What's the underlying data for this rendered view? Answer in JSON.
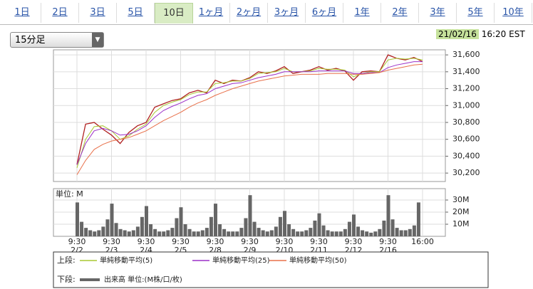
{
  "tabs": [
    {
      "label": "1日"
    },
    {
      "label": "2日"
    },
    {
      "label": "3日"
    },
    {
      "label": "5日"
    },
    {
      "label": "10日",
      "selected": true
    },
    {
      "label": "1ヶ月"
    },
    {
      "label": "2ヶ月"
    },
    {
      "label": "3ヶ月"
    },
    {
      "label": "6ヶ月"
    },
    {
      "label": "1年"
    },
    {
      "label": "2年"
    },
    {
      "label": "3年"
    },
    {
      "label": "5年"
    },
    {
      "label": "10年"
    }
  ],
  "interval": "15分足",
  "timestamp": {
    "date": "21/02/16",
    "time": "16:20 EST"
  },
  "legend_rows": [
    "上段:",
    "下段:"
  ],
  "chart_data": [
    {
      "type": "line",
      "xlim": [
        -0.68,
        10.66
      ],
      "ylim": [
        30100,
        31660
      ],
      "yticks": [
        {
          "value": 30200,
          "label": "30,200"
        },
        {
          "value": 30400,
          "label": "30,400"
        },
        {
          "value": 30600,
          "label": "30,600"
        },
        {
          "value": 30800,
          "label": "30,800"
        },
        {
          "value": 31000,
          "label": "31,000"
        },
        {
          "value": 31200,
          "label": "31,200"
        },
        {
          "value": 31400,
          "label": "31,400"
        },
        {
          "value": 31600,
          "label": "31,600"
        }
      ],
      "grid": true,
      "x": [
        0,
        0.25,
        0.5,
        0.75,
        1,
        1.25,
        1.5,
        1.75,
        2,
        2.25,
        2.5,
        2.75,
        3,
        3.25,
        3.5,
        3.75,
        4,
        4.25,
        4.5,
        4.75,
        5,
        5.25,
        5.5,
        5.75,
        6,
        6.25,
        6.5,
        6.75,
        7,
        7.25,
        7.5,
        7.75,
        8,
        8.25,
        8.5,
        8.75,
        9,
        9.25,
        9.5,
        9.75,
        10
      ],
      "series": [
        {
          "color": "#b02020",
          "width": 1.3,
          "values": [
            30300,
            30780,
            30800,
            30720,
            30650,
            30550,
            30680,
            30760,
            30800,
            30980,
            31020,
            31060,
            31080,
            31150,
            31180,
            31150,
            31300,
            31260,
            31300,
            31290,
            31330,
            31400,
            31380,
            31410,
            31460,
            31380,
            31400,
            31420,
            31460,
            31420,
            31440,
            31410,
            31300,
            31400,
            31410,
            31400,
            31600,
            31560,
            31540,
            31570,
            31520
          ]
        },
        {
          "name": "単純移動平均(5)",
          "color": "#a8c832",
          "width": 1,
          "values": [
            30260,
            30600,
            30750,
            30760,
            30700,
            30600,
            30640,
            30720,
            30780,
            30920,
            31000,
            31040,
            31070,
            31130,
            31160,
            31160,
            31260,
            31270,
            31290,
            31290,
            31320,
            31380,
            31390,
            31400,
            31440,
            31400,
            31400,
            31410,
            31440,
            31430,
            31430,
            31420,
            31340,
            31380,
            31400,
            31400,
            31540,
            31560,
            31550,
            31560,
            31540
          ]
        },
        {
          "name": "単純移動平均(25)",
          "color": "#9b30c8",
          "width": 1,
          "values": [
            30300,
            30550,
            30700,
            30730,
            30700,
            30650,
            30660,
            30700,
            30760,
            30860,
            30940,
            30990,
            31030,
            31080,
            31120,
            31140,
            31200,
            31230,
            31260,
            31270,
            31300,
            31330,
            31350,
            31370,
            31400,
            31400,
            31400,
            31400,
            31410,
            31410,
            31410,
            31410,
            31380,
            31380,
            31390,
            31390,
            31450,
            31480,
            31500,
            31520,
            31520
          ]
        },
        {
          "name": "単純移動平均(50)",
          "color": "#e8704a",
          "width": 1,
          "values": [
            30180,
            30350,
            30480,
            30540,
            30580,
            30600,
            30620,
            30660,
            30700,
            30760,
            30820,
            30870,
            30920,
            30980,
            31030,
            31070,
            31120,
            31160,
            31200,
            31230,
            31260,
            31290,
            31310,
            31330,
            31350,
            31360,
            31370,
            31370,
            31370,
            31380,
            31380,
            31380,
            31370,
            31370,
            31380,
            31390,
            31420,
            31440,
            31460,
            31480,
            31490
          ]
        }
      ]
    },
    {
      "type": "bar",
      "unit_label": "単位: M",
      "xlim": [
        -0.68,
        10.66
      ],
      "ylim": [
        0,
        39.4
      ],
      "yticks": [
        {
          "value": 10,
          "label": "10M"
        },
        {
          "value": 20,
          "label": "20M"
        },
        {
          "value": 30,
          "label": "30M"
        }
      ],
      "xticks": [
        {
          "value": 0,
          "label": "9:30",
          "date": "2/2"
        },
        {
          "value": 1,
          "label": "9:30",
          "date": "2/3"
        },
        {
          "value": 2,
          "label": "9:30",
          "date": "2/4"
        },
        {
          "value": 3,
          "label": "9:30",
          "date": "2/5"
        },
        {
          "value": 4,
          "label": "9:30",
          "date": "2/8"
        },
        {
          "value": 5,
          "label": "9:30",
          "date": "2/9"
        },
        {
          "value": 6,
          "label": "9:30",
          "date": "2/10"
        },
        {
          "value": 7,
          "label": "9:30",
          "date": "2/11"
        },
        {
          "value": 8,
          "label": "9:30",
          "date": "2/12"
        },
        {
          "value": 9,
          "label": "9:30",
          "date": "2/16"
        },
        {
          "value": 10,
          "label": "16:00"
        }
      ],
      "x": [
        0,
        0.125,
        0.25,
        0.375,
        0.5,
        0.625,
        0.75,
        0.875,
        1,
        1.125,
        1.25,
        1.375,
        1.5,
        1.625,
        1.75,
        1.875,
        2,
        2.125,
        2.25,
        2.375,
        2.5,
        2.625,
        2.75,
        2.875,
        3,
        3.125,
        3.25,
        3.375,
        3.5,
        3.625,
        3.75,
        3.875,
        4,
        4.125,
        4.25,
        4.375,
        4.5,
        4.625,
        4.75,
        4.875,
        5,
        5.125,
        5.25,
        5.375,
        5.5,
        5.625,
        5.75,
        5.875,
        6,
        6.125,
        6.25,
        6.375,
        6.5,
        6.625,
        6.75,
        6.875,
        7,
        7.125,
        7.25,
        7.375,
        7.5,
        7.625,
        7.75,
        7.875,
        8,
        8.125,
        8.25,
        8.375,
        8.5,
        8.625,
        8.75,
        8.875,
        9,
        9.125,
        9.25,
        9.375,
        9.5,
        9.625,
        9.75,
        9.875
      ],
      "series": [
        {
          "name": "出来高 単位:(M株/口/枚)",
          "color": "#666666",
          "values": [
            28,
            12,
            7,
            5,
            4,
            5,
            8,
            14,
            27,
            11,
            6,
            5,
            4,
            5,
            8,
            16,
            25,
            10,
            6,
            4,
            4,
            5,
            7,
            15,
            24,
            10,
            6,
            4,
            4,
            5,
            7,
            16,
            27,
            10,
            6,
            4,
            4,
            4,
            7,
            15,
            34,
            12,
            7,
            5,
            4,
            5,
            8,
            16,
            21,
            10,
            6,
            4,
            4,
            5,
            7,
            13,
            19,
            9,
            5,
            4,
            4,
            4,
            6,
            12,
            18,
            8,
            5,
            4,
            3,
            4,
            6,
            13,
            34,
            14,
            7,
            5,
            5,
            6,
            9,
            28
          ]
        }
      ]
    }
  ]
}
